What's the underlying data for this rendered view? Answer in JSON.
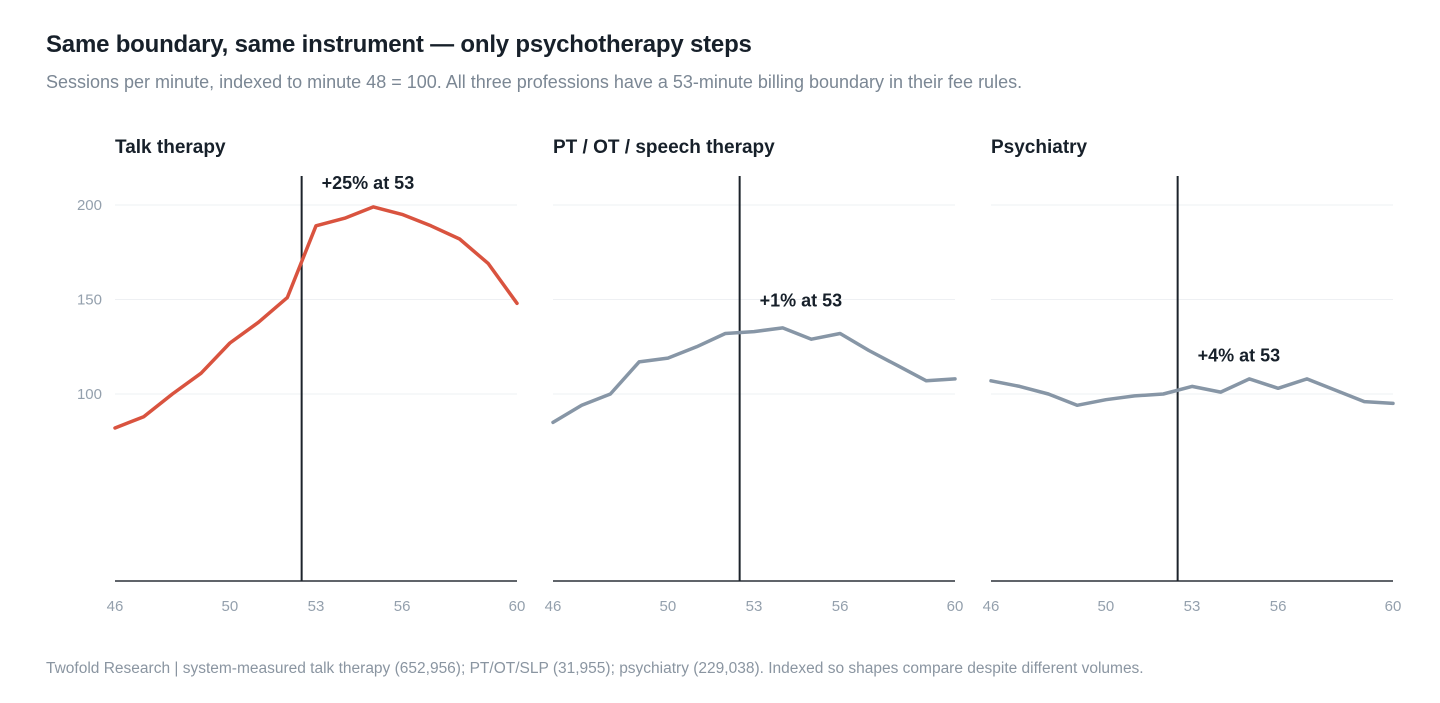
{
  "header": {
    "title": "Same boundary, same instrument — only psychotherapy steps",
    "subtitle": "Sessions per minute, indexed to minute 48 = 100. All three professions have a 53-minute billing boundary in their fee rules."
  },
  "footer": {
    "source": "Twofold Research | system-measured talk therapy (652,956); PT/OT/SLP (31,955); psychiatry (229,038). Indexed so shapes compare despite different volumes."
  },
  "colors": {
    "highlight": "#d9533f",
    "muted": "#8796a6",
    "boundary": "#1c232b",
    "axis": "#2b3138",
    "grid": "#eef0f3"
  },
  "chart_data": [
    {
      "type": "line",
      "title": "Talk therapy",
      "color_key": "highlight",
      "x": [
        46,
        47,
        48,
        49,
        50,
        51,
        52,
        53,
        54,
        55,
        56,
        57,
        58,
        59,
        60
      ],
      "values": [
        82,
        88,
        100,
        111,
        127,
        138,
        151,
        189,
        193,
        199,
        195,
        189,
        182,
        169,
        148
      ],
      "boundary_x": 52.5,
      "annotation": "+25% at 53",
      "xticks": [
        46,
        50,
        53,
        56,
        60
      ],
      "yticks": [
        100,
        150,
        200
      ],
      "xlim": [
        46,
        60
      ],
      "ylim": [
        0,
        215
      ]
    },
    {
      "type": "line",
      "title": "PT / OT / speech therapy",
      "color_key": "muted",
      "x": [
        46,
        47,
        48,
        49,
        50,
        51,
        52,
        53,
        54,
        55,
        56,
        57,
        58,
        59,
        60
      ],
      "values": [
        85,
        94,
        100,
        117,
        119,
        125,
        132,
        133,
        135,
        129,
        132,
        123,
        115,
        107,
        108
      ],
      "boundary_x": 52.5,
      "annotation": "+1% at 53",
      "xticks": [
        46,
        50,
        53,
        56,
        60
      ],
      "yticks": [
        100,
        150,
        200
      ],
      "xlim": [
        46,
        60
      ],
      "ylim": [
        0,
        215
      ]
    },
    {
      "type": "line",
      "title": "Psychiatry",
      "color_key": "muted",
      "x": [
        46,
        47,
        48,
        49,
        50,
        51,
        52,
        53,
        54,
        55,
        56,
        57,
        58,
        59,
        60
      ],
      "values": [
        107,
        104,
        100,
        94,
        97,
        99,
        100,
        104,
        101,
        108,
        103,
        108,
        102,
        96,
        95
      ],
      "boundary_x": 52.5,
      "annotation": "+4% at 53",
      "xticks": [
        46,
        50,
        53,
        56,
        60
      ],
      "yticks": [
        100,
        150,
        200
      ],
      "xlim": [
        46,
        60
      ],
      "ylim": [
        0,
        215
      ]
    }
  ]
}
